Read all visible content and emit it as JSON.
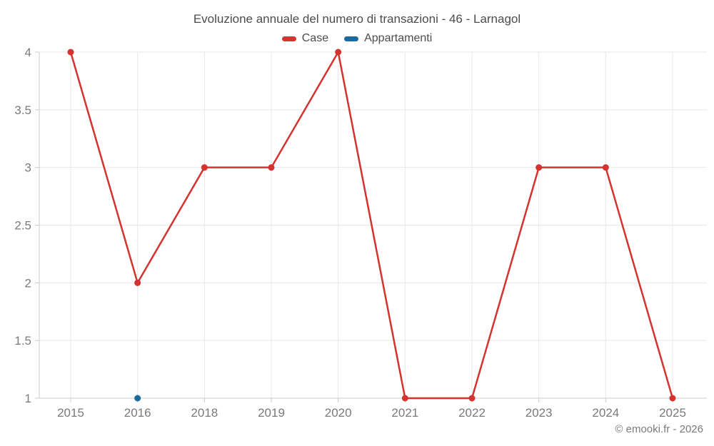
{
  "header": {
    "title": "Evoluzione annuale del numero di transazioni - 46 - Larnagol"
  },
  "footer": {
    "copyright": "© emooki.fr - 2026"
  },
  "colors": {
    "case_red": "#d4332f",
    "appartamenti_blue": "#1b6a9e",
    "grid": "#e8e8e8",
    "axis": "#cccccc",
    "tick_text": "#7a7a7a",
    "title_text": "#4c4c4c"
  },
  "chart_data": {
    "type": "line",
    "title": "Evoluzione annuale del numero di transazioni - 46 - Larnagol",
    "xlabel": "",
    "ylabel": "",
    "categories": [
      "2015",
      "2016",
      "2018",
      "2019",
      "2020",
      "2021",
      "2022",
      "2023",
      "2024",
      "2025"
    ],
    "ylim": [
      1,
      4
    ],
    "yticks": [
      1,
      1.5,
      2,
      2.5,
      3,
      3.5,
      4
    ],
    "ytick_labels": [
      "1",
      "1.5",
      "2",
      "2.5",
      "3",
      "3.5",
      "4"
    ],
    "grid": true,
    "legend_position": "top",
    "series": [
      {
        "name": "Case",
        "color": "#d4332f",
        "show_line": true,
        "values": [
          4,
          2,
          3,
          3,
          4,
          1,
          1,
          3,
          3,
          1
        ]
      },
      {
        "name": "Appartamenti",
        "color": "#1b6a9e",
        "show_line": false,
        "values": [
          null,
          1,
          null,
          null,
          null,
          null,
          null,
          null,
          null,
          null
        ]
      }
    ]
  }
}
